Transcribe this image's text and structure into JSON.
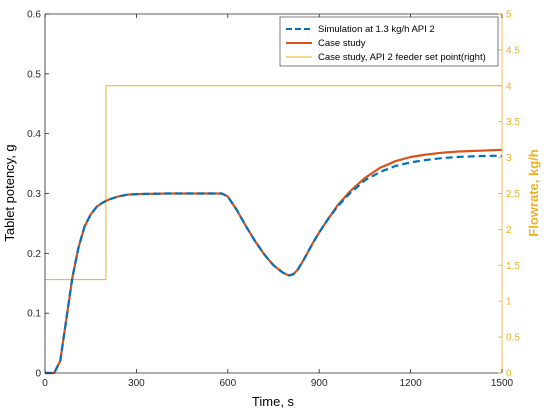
{
  "chart_data": {
    "type": "line",
    "xlabel": "Time, s",
    "ylabel_left": "Tablet potency, g",
    "ylabel_right": "Flowrate, kg/h",
    "xlim": [
      0,
      1500
    ],
    "ylim_left": [
      0,
      0.6
    ],
    "ylim_right": [
      0,
      5
    ],
    "x_ticks": [
      "0",
      "300",
      "600",
      "900",
      "1200",
      "1500"
    ],
    "y_ticks_left": [
      "0",
      "0.1",
      "0.2",
      "0.3",
      "0.4",
      "0.5",
      "0.6"
    ],
    "y_ticks_right": [
      "0",
      "0.5",
      "1",
      "1.5",
      "2",
      "2.5",
      "3",
      "3.5",
      "4",
      "4.5",
      "5"
    ],
    "legend_position": "top-right",
    "colors": {
      "simulation": "#0072BD",
      "case_study": "#D95319",
      "setpoint": "#EDB120",
      "right_axis": "#EDB120"
    },
    "series": [
      {
        "name": "Simulation at 1.3 kg/h API 2",
        "axis": "left",
        "style": "dashed",
        "x": [
          0,
          30,
          50,
          70,
          90,
          110,
          130,
          150,
          170,
          190,
          210,
          240,
          270,
          300,
          400,
          500,
          580,
          600,
          630,
          660,
          690,
          720,
          750,
          780,
          800,
          815,
          830,
          850,
          880,
          900,
          930,
          960,
          1000,
          1050,
          1100,
          1150,
          1200,
          1250,
          1300,
          1350,
          1400,
          1450,
          1500
        ],
        "y": [
          0,
          0,
          0.02,
          0.09,
          0.16,
          0.21,
          0.245,
          0.265,
          0.278,
          0.285,
          0.29,
          0.295,
          0.298,
          0.299,
          0.3,
          0.3,
          0.3,
          0.295,
          0.272,
          0.245,
          0.22,
          0.198,
          0.18,
          0.168,
          0.163,
          0.165,
          0.173,
          0.19,
          0.218,
          0.235,
          0.258,
          0.278,
          0.3,
          0.322,
          0.336,
          0.346,
          0.352,
          0.356,
          0.359,
          0.361,
          0.362,
          0.363,
          0.363
        ]
      },
      {
        "name": "Case study",
        "axis": "left",
        "style": "solid",
        "x": [
          0,
          30,
          50,
          70,
          90,
          110,
          130,
          150,
          170,
          190,
          210,
          240,
          270,
          300,
          400,
          500,
          580,
          600,
          630,
          660,
          690,
          720,
          750,
          780,
          800,
          815,
          830,
          850,
          880,
          900,
          930,
          960,
          1000,
          1050,
          1100,
          1150,
          1200,
          1250,
          1300,
          1350,
          1400,
          1450,
          1500
        ],
        "y": [
          0,
          0,
          0.02,
          0.09,
          0.16,
          0.21,
          0.245,
          0.265,
          0.278,
          0.285,
          0.29,
          0.295,
          0.298,
          0.299,
          0.3,
          0.3,
          0.3,
          0.295,
          0.272,
          0.245,
          0.22,
          0.198,
          0.18,
          0.168,
          0.163,
          0.165,
          0.173,
          0.19,
          0.218,
          0.235,
          0.258,
          0.28,
          0.303,
          0.326,
          0.343,
          0.354,
          0.361,
          0.365,
          0.368,
          0.37,
          0.371,
          0.372,
          0.373
        ]
      },
      {
        "name": "Case study, API 2 feeder set point(right)",
        "axis": "right",
        "style": "solid-thin",
        "x": [
          0,
          200,
          200,
          1500
        ],
        "y": [
          1.3,
          1.3,
          4,
          4
        ]
      }
    ]
  }
}
